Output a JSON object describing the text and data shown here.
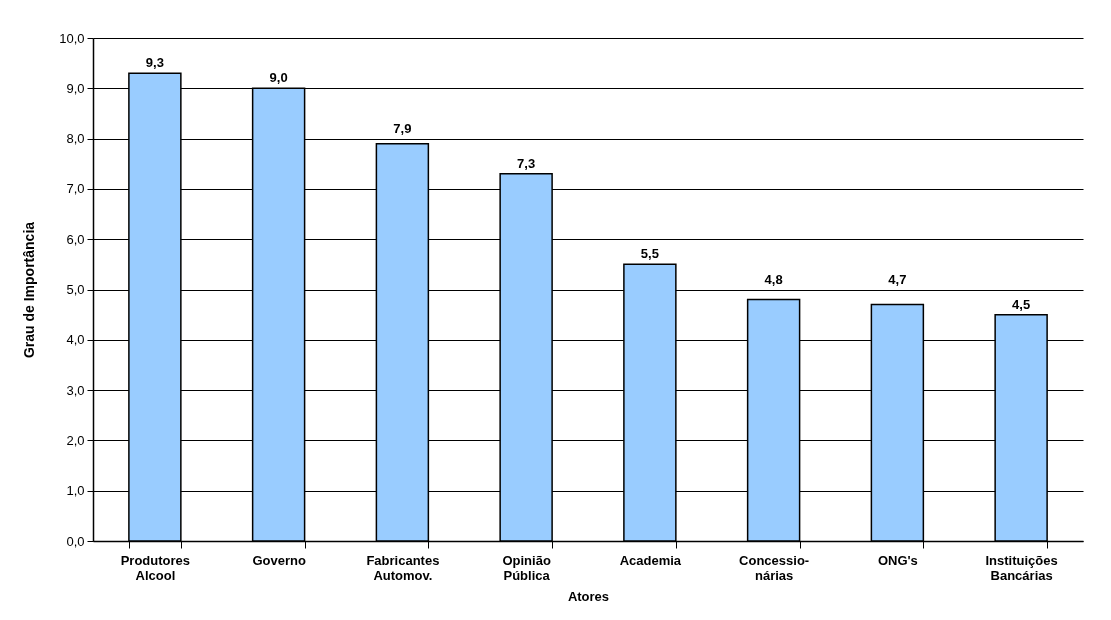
{
  "chart_data": {
    "type": "bar",
    "xlabel": "Atores",
    "ylabel": "Grau de Importância",
    "categories": [
      "Produtores Alcool",
      "Governo",
      "Fabricantes Automov.",
      "Opinião Pública",
      "Academia",
      "Concessio-nárias",
      "ONG's",
      "Instituições Bancárias"
    ],
    "values": [
      9.3,
      9.0,
      7.9,
      7.3,
      5.5,
      4.8,
      4.7,
      4.5
    ],
    "value_labels": [
      "9,3",
      "9,0",
      "7,9",
      "7,3",
      "5,5",
      "4,8",
      "4,7",
      "4,5"
    ],
    "color": "#99ccff",
    "ylim": [
      0,
      10
    ],
    "yticks": [
      {
        "value": 0,
        "label": "0,0"
      },
      {
        "value": 1,
        "label": "1,0"
      },
      {
        "value": 2,
        "label": "2,0"
      },
      {
        "value": 3,
        "label": "3,0"
      },
      {
        "value": 4,
        "label": "4,0"
      },
      {
        "value": 5,
        "label": "5,0"
      },
      {
        "value": 6,
        "label": "6,0"
      },
      {
        "value": 7,
        "label": "7,0"
      },
      {
        "value": 8,
        "label": "8,0"
      },
      {
        "value": 9,
        "label": "9,0"
      },
      {
        "value": 10,
        "label": "10,0"
      }
    ],
    "grid": true
  }
}
